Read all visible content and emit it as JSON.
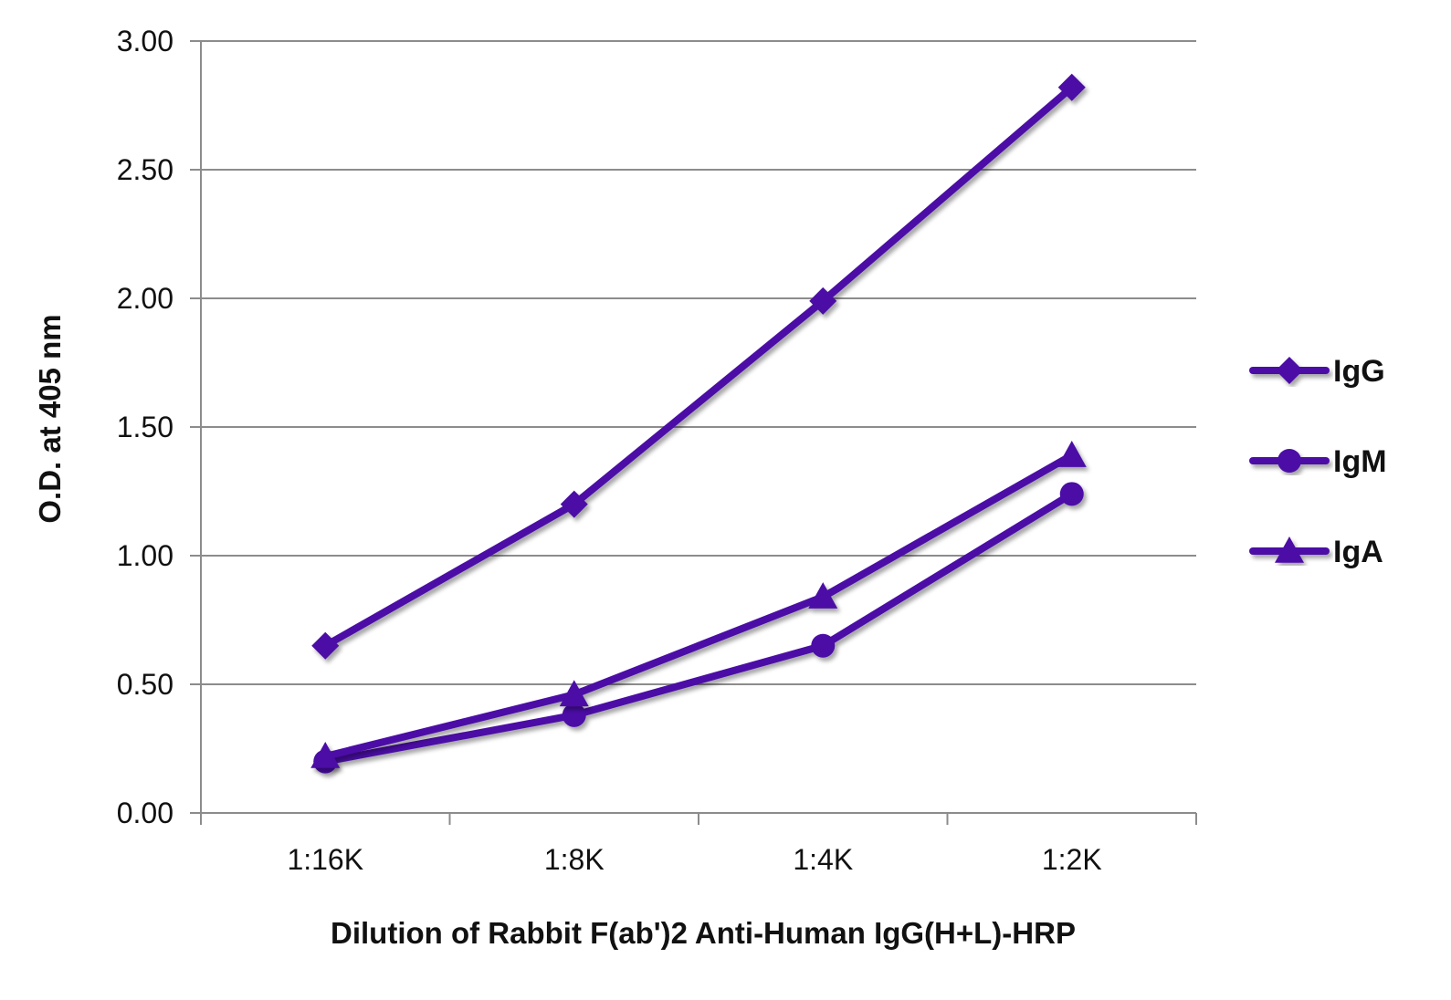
{
  "chart_data": {
    "type": "line",
    "xlabel": "Dilution of Rabbit F(ab')2 Anti-Human IgG(H+L)-HRP",
    "ylabel": "O.D. at 405 nm",
    "categories": [
      "1:16K",
      "1:8K",
      "1:4K",
      "1:2K"
    ],
    "ylim": [
      0,
      3
    ],
    "yticks": [
      "0.00",
      "0.50",
      "1.00",
      "1.50",
      "2.00",
      "2.50",
      "3.00"
    ],
    "grid": true,
    "legend_position": "right",
    "line_color": "#4B0CA6",
    "series": [
      {
        "name": "IgG",
        "marker": "diamond",
        "values": [
          0.65,
          1.2,
          1.99,
          2.82
        ]
      },
      {
        "name": "IgM",
        "marker": "circle",
        "values": [
          0.2,
          0.38,
          0.65,
          1.24
        ]
      },
      {
        "name": "IgA",
        "marker": "triangle",
        "values": [
          0.22,
          0.46,
          0.84,
          1.39
        ]
      }
    ]
  }
}
